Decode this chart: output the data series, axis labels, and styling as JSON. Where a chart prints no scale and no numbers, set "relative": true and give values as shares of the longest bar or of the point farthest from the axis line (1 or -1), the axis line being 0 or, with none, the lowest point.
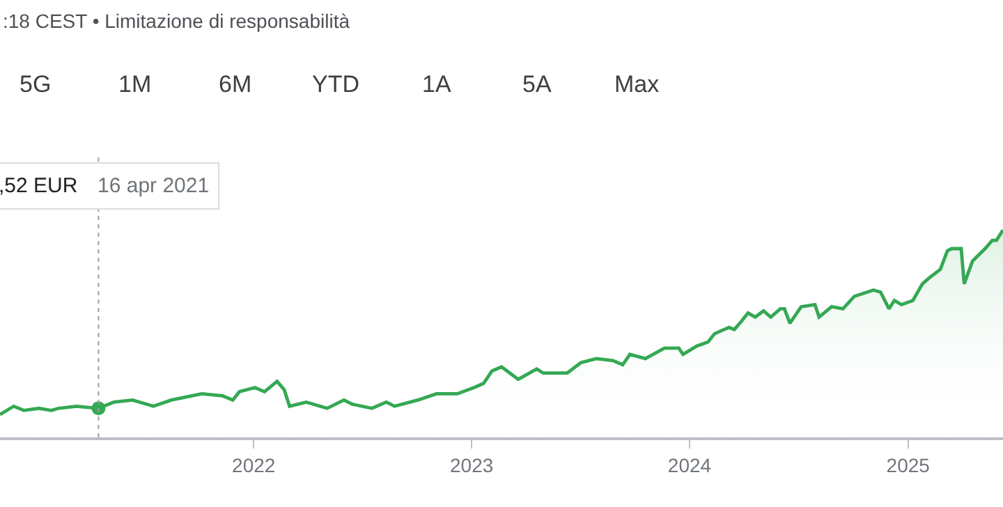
{
  "chart_data": {
    "type": "area",
    "relative": true,
    "annotations": [
      ":18 CEST • Limitazione di responsabilità",
      "5G",
      "1M",
      "6M",
      "YTD",
      "1A",
      "5A",
      "Max",
      ",52 EUR",
      "16 apr 2021"
    ],
    "x": [
      "2020-11-02",
      "2020-11-25",
      "2020-12-12",
      "2021-01-06",
      "2021-01-27",
      "2021-02-08",
      "2021-03-10",
      "2021-04-16",
      "2021-05-12",
      "2021-06-12",
      "2021-07-17",
      "2021-08-16",
      "2021-10-06",
      "2021-11-10",
      "2021-11-27",
      "2021-12-08",
      "2022-01-03",
      "2022-01-19",
      "2022-02-09",
      "2022-02-21",
      "2022-03-02",
      "2022-03-30",
      "2022-05-04",
      "2022-06-01",
      "2022-06-15",
      "2022-07-18",
      "2022-08-11",
      "2022-08-25",
      "2022-10-03",
      "2022-11-03",
      "2022-12-08",
      "2023-01-05",
      "2023-01-21",
      "2023-02-04",
      "2023-02-20",
      "2023-03-20",
      "2023-04-20",
      "2023-05-01",
      "2023-06-10",
      "2023-07-03",
      "2023-07-29",
      "2023-08-26",
      "2023-09-11",
      "2023-09-23",
      "2023-10-19",
      "2023-11-20",
      "2023-12-14",
      "2023-12-21",
      "2024-01-13",
      "2024-02-01",
      "2024-02-12",
      "2024-03-07",
      "2024-03-16",
      "2024-03-28",
      "2024-04-08",
      "2024-04-20",
      "2024-05-04",
      "2024-05-16",
      "2024-06-01",
      "2024-06-08",
      "2024-06-17",
      "2024-07-06",
      "2024-07-29",
      "2024-08-05",
      "2024-08-26",
      "2024-09-14",
      "2024-10-03",
      "2024-11-04",
      "2024-11-16",
      "2024-11-30",
      "2024-12-09",
      "2024-12-21",
      "2025-01-09",
      "2025-01-25",
      "2025-02-06",
      "2025-02-24",
      "2025-03-08",
      "2025-03-15",
      "2025-03-31",
      "2025-04-05",
      "2025-04-19",
      "2025-05-10",
      "2025-05-22",
      "2025-05-29",
      "2025-06-09"
    ],
    "series": [
      {
        "color": "#34a853",
        "values": [
          0.11,
          0.15,
          0.13,
          0.14,
          0.13,
          0.14,
          0.15,
          0.14,
          0.17,
          0.18,
          0.15,
          0.18,
          0.21,
          0.2,
          0.18,
          0.22,
          0.24,
          0.22,
          0.27,
          0.23,
          0.15,
          0.17,
          0.14,
          0.18,
          0.16,
          0.14,
          0.17,
          0.15,
          0.18,
          0.21,
          0.21,
          0.24,
          0.26,
          0.32,
          0.34,
          0.28,
          0.33,
          0.31,
          0.31,
          0.36,
          0.38,
          0.37,
          0.35,
          0.4,
          0.38,
          0.43,
          0.43,
          0.4,
          0.44,
          0.46,
          0.5,
          0.53,
          0.52,
          0.56,
          0.6,
          0.58,
          0.61,
          0.58,
          0.62,
          0.62,
          0.55,
          0.63,
          0.64,
          0.58,
          0.63,
          0.62,
          0.68,
          0.71,
          0.7,
          0.62,
          0.66,
          0.64,
          0.66,
          0.74,
          0.77,
          0.81,
          0.9,
          0.91,
          0.91,
          0.74,
          0.85,
          0.91,
          0.95,
          0.95,
          1
        ]
      },
      {
        "type": "scatter",
        "marker": "circle",
        "color": "#34a853",
        "x": [
          "2021-04-16"
        ],
        "values": [
          0.14
        ]
      }
    ],
    "xlim": [
      "2020-11-02",
      "2025-06-09"
    ],
    "xticks": [
      "2022",
      "2023",
      "2024",
      "2025"
    ],
    "ref_lines": [
      {
        "axis": "x",
        "value": "2021-04-16",
        "color": "#9e9e9e",
        "line_style": "dotted"
      }
    ]
  }
}
